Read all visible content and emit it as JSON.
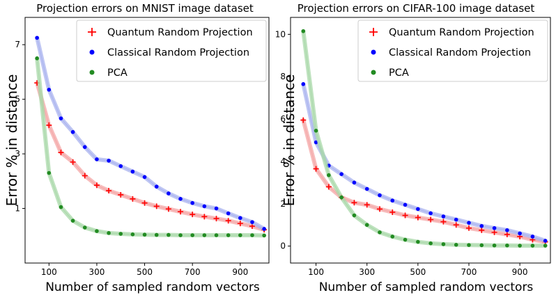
{
  "chart_data": [
    {
      "type": "line",
      "title": "Projection errors on MNIST image dataset",
      "xlabel": "Number of sampled random vectors",
      "ylabel": "Error % in distance",
      "xlim": [
        0,
        1020
      ],
      "ylim": [
        -1.0,
        8.0
      ],
      "xticks": [
        100,
        300,
        500,
        700,
        900
      ],
      "yticks": [
        1,
        3,
        5,
        7
      ],
      "x": [
        50,
        100,
        150,
        200,
        250,
        300,
        350,
        400,
        450,
        500,
        550,
        600,
        650,
        700,
        750,
        800,
        850,
        900,
        950,
        1000
      ],
      "legend_position": "top-right",
      "grid": false,
      "series": [
        {
          "name": "Quantum Random Projection",
          "marker": "plus",
          "color": "#ff0000",
          "band_color": "#f4a6a6",
          "values": [
            5.6,
            4.05,
            3.05,
            2.7,
            2.2,
            1.85,
            1.65,
            1.5,
            1.35,
            1.2,
            1.08,
            0.98,
            0.88,
            0.78,
            0.7,
            0.63,
            0.55,
            0.45,
            0.35,
            0.22
          ]
        },
        {
          "name": "Classical Random Projection",
          "marker": "dot",
          "color": "#0000ff",
          "band_color": "#a9b3ef",
          "values": [
            7.25,
            5.35,
            4.3,
            3.8,
            3.25,
            2.8,
            2.75,
            2.55,
            2.35,
            2.15,
            1.8,
            1.55,
            1.35,
            1.2,
            1.08,
            1.0,
            0.82,
            0.65,
            0.5,
            0.25
          ]
        },
        {
          "name": "PCA",
          "marker": "dot",
          "color": "#228b22",
          "band_color": "#a8d8a8",
          "values": [
            6.5,
            2.3,
            1.05,
            0.55,
            0.3,
            0.17,
            0.1,
            0.07,
            0.05,
            0.04,
            0.03,
            0.03,
            0.02,
            0.02,
            0.02,
            0.02,
            0.02,
            0.02,
            0.02,
            0.01
          ]
        }
      ]
    },
    {
      "type": "line",
      "title": "Projection errors on CIFAR-100 image dataset",
      "xlabel": "Number of sampled random vectors",
      "ylabel": "Error % in distance",
      "xlim": [
        0,
        1020
      ],
      "ylim": [
        -0.8,
        10.8
      ],
      "xticks": [
        100,
        300,
        500,
        700,
        900
      ],
      "yticks": [
        0,
        2,
        4,
        6,
        8,
        10
      ],
      "x": [
        50,
        100,
        150,
        200,
        250,
        300,
        350,
        400,
        450,
        500,
        550,
        600,
        650,
        700,
        750,
        800,
        850,
        900,
        950,
        1000
      ],
      "legend_position": "top-right",
      "grid": false,
      "series": [
        {
          "name": "Quantum Random Projection",
          "marker": "plus",
          "color": "#ff0000",
          "band_color": "#f4a6a6",
          "values": [
            5.95,
            3.65,
            2.8,
            2.3,
            2.05,
            1.95,
            1.75,
            1.6,
            1.45,
            1.35,
            1.25,
            1.15,
            1.0,
            0.85,
            0.75,
            0.65,
            0.55,
            0.45,
            0.3,
            0.2
          ]
        },
        {
          "name": "Classical Random Projection",
          "marker": "dot",
          "color": "#0000ff",
          "band_color": "#a9b3ef",
          "values": [
            7.65,
            4.9,
            3.8,
            3.4,
            3.0,
            2.7,
            2.4,
            2.15,
            1.95,
            1.75,
            1.55,
            1.4,
            1.25,
            1.1,
            0.95,
            0.85,
            0.75,
            0.6,
            0.45,
            0.25
          ]
        },
        {
          "name": "PCA",
          "marker": "dot",
          "color": "#228b22",
          "band_color": "#a8d8a8",
          "values": [
            10.15,
            5.45,
            3.35,
            2.3,
            1.45,
            1.0,
            0.65,
            0.45,
            0.3,
            0.2,
            0.13,
            0.09,
            0.06,
            0.05,
            0.04,
            0.03,
            0.03,
            0.02,
            0.02,
            0.02
          ]
        }
      ]
    }
  ]
}
